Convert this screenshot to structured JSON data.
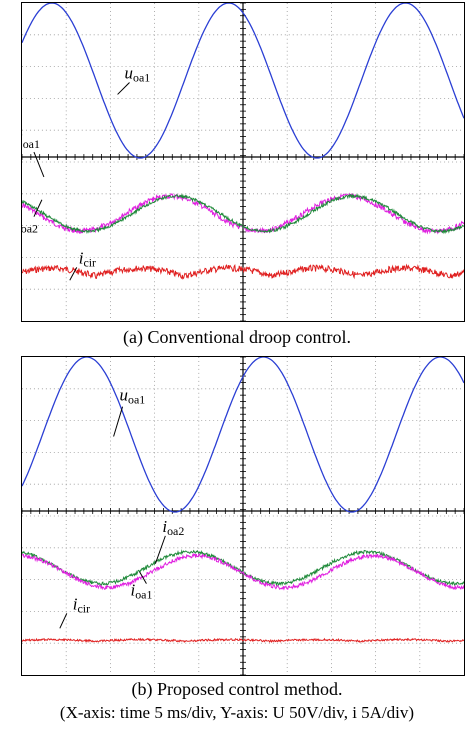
{
  "chart_data": [
    {
      "type": "line",
      "panel": "a",
      "caption": "(a) Conventional droop control.",
      "x_grid_divisions": 10,
      "voltage_channel": {
        "label_main": "u",
        "label_sub": "oa1",
        "color": "#2b3fd4",
        "waveform": "sine",
        "cycles_on_screen": 2.5,
        "amplitude_div": 2.0
      },
      "current_channels": [
        {
          "label_main": "i",
          "label_sub": "oa1",
          "color": "#e020e0",
          "amplitude_div": 0.55,
          "noise_div": 0.08
        },
        {
          "label_main": "i",
          "label_sub": "oa2",
          "color": "#1f8a3a",
          "amplitude_div": 0.55,
          "noise_div": 0.05
        }
      ],
      "circulating_channel": {
        "label_main": "i",
        "label_sub": "cir",
        "color": "#e02020",
        "description_level_div": 0.25,
        "ripple_div": 0.1
      }
    },
    {
      "type": "line",
      "panel": "b",
      "caption": "(b) Proposed control method.",
      "x_grid_divisions": 10,
      "voltage_channel": {
        "label_main": "u",
        "label_sub": "oa1",
        "color": "#2b3fd4",
        "waveform": "sine",
        "cycles_on_screen": 2.5,
        "amplitude_div": 2.0
      },
      "current_channels": [
        {
          "label_main": "i",
          "label_sub": "oa2",
          "color": "#1f8a3a",
          "amplitude_div": 0.5,
          "noise_div": 0.05
        },
        {
          "label_main": "i",
          "label_sub": "oa1",
          "color": "#e020e0",
          "amplitude_div": 0.5,
          "noise_div": 0.06
        }
      ],
      "circulating_channel": {
        "label_main": "i",
        "label_sub": "cir",
        "color": "#e02020",
        "description_level_div": 0.05,
        "ripple_div": 0.03
      }
    }
  ],
  "footnote": "(X-axis: time 5 ms/div, Y-axis: U 50V/div, i 5A/div)"
}
